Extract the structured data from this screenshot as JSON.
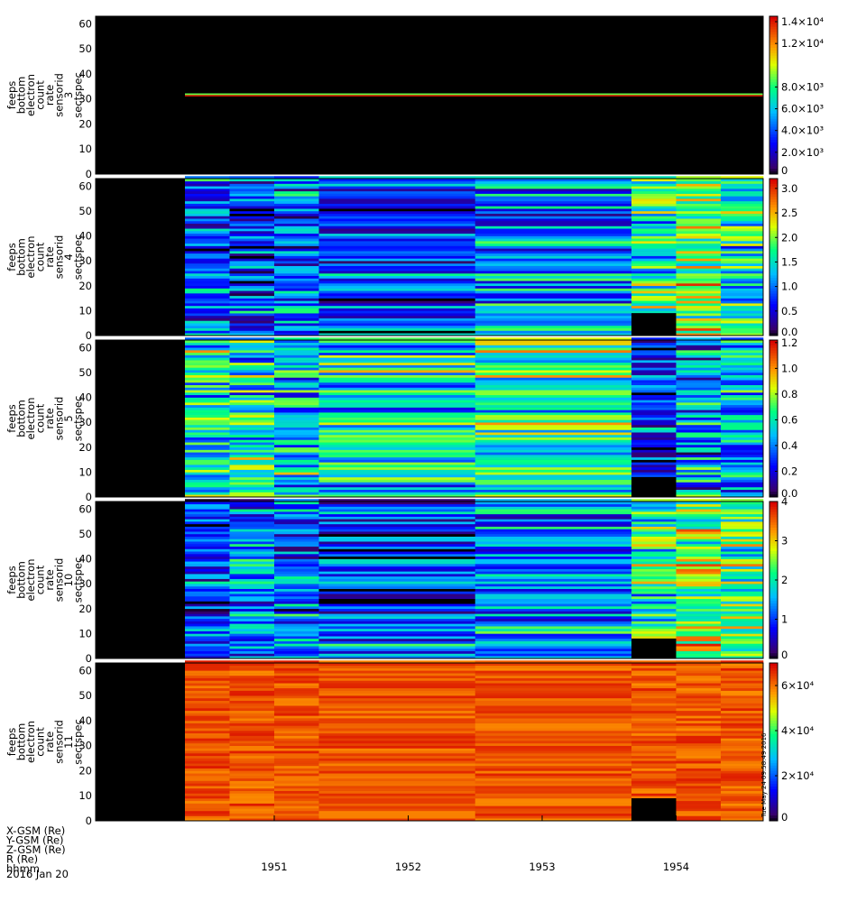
{
  "figure": {
    "date_label": "2016 Jan 20",
    "row_labels": [
      "X-GSM (Re)",
      "Y-GSM (Re)",
      "Z-GSM (Re)",
      "R (Re)",
      "hhmm"
    ],
    "side_stamp": "Tue May 24 09:58:49 2016",
    "time_ticks": [
      "1951",
      "1952",
      "1953",
      "1954"
    ]
  },
  "chart_data": [
    {
      "type": "heatmap",
      "ylabel": [
        "feeps",
        "bottom",
        "electron",
        "count",
        "rate",
        "sensorid",
        "3",
        "sectspec"
      ],
      "y_ticks": [
        "0",
        "10",
        "20",
        "30",
        "40",
        "50",
        "60"
      ],
      "ylim": [
        0,
        63
      ],
      "colorbar": {
        "ticks": [
          "0",
          "2.0×10³",
          "4.0×10³",
          "6.0×10³",
          "8.0×10³",
          "1.2×10⁴",
          "1.4×10⁴"
        ],
        "tick_values": [
          0,
          2000,
          4000,
          6000,
          8000,
          12000,
          14000
        ],
        "range": [
          0,
          14500
        ]
      },
      "data_start_time": "19:50:20",
      "features": [
        {
          "bin_low": 31,
          "bin_high": 31.6,
          "value": 14000,
          "level": "red"
        },
        {
          "bin_low": 31.6,
          "bin_high": 32.2,
          "value": 9000,
          "level": "green"
        }
      ]
    },
    {
      "type": "heatmap",
      "ylabel": [
        "feeps",
        "bottom",
        "electron",
        "count",
        "rate",
        "sensorid",
        "4",
        "sectspec"
      ],
      "y_ticks": [
        "0",
        "10",
        "20",
        "30",
        "40",
        "50",
        "60"
      ],
      "ylim": [
        0,
        63
      ],
      "colorbar": {
        "ticks": [
          "0.0",
          "0.5",
          "1.0",
          "1.5",
          "2.0",
          "2.5",
          "3.0"
        ],
        "tick_values": [
          0,
          0.5,
          1.0,
          1.5,
          2.0,
          2.5,
          3.0
        ],
        "range": [
          0,
          3.2
        ]
      },
      "data_start_time": "19:50:20",
      "time_blocks": [
        "19:50:20",
        "19:50:40",
        "19:51:00",
        "19:51:20",
        "19:52:30",
        "19:53:40",
        "19:54:00",
        "19:54:20"
      ],
      "block_means": [
        0.9,
        0.8,
        0.95,
        0.7,
        1.1,
        1.75,
        2.0,
        1.5
      ],
      "missing": [
        {
          "time_from": "19:53:40",
          "time_to": "19:54:00",
          "bin_low": 0,
          "bin_high": 9
        }
      ]
    },
    {
      "type": "heatmap",
      "ylabel": [
        "feeps",
        "bottom",
        "electron",
        "count",
        "rate",
        "sensorid",
        "5",
        "sectspec"
      ],
      "y_ticks": [
        "0",
        "10",
        "20",
        "30",
        "40",
        "50",
        "60"
      ],
      "ylim": [
        0,
        63
      ],
      "colorbar": {
        "ticks": [
          "0.0",
          "0.2",
          "0.4",
          "0.6",
          "0.8",
          "1.0",
          "1.2"
        ],
        "tick_values": [
          0,
          0.2,
          0.4,
          0.6,
          0.8,
          1.0,
          1.2
        ],
        "range": [
          0,
          1.22
        ]
      },
      "data_start_time": "19:50:20",
      "time_blocks": [
        "19:50:20",
        "19:50:40",
        "19:51:00",
        "19:51:20",
        "19:52:30",
        "19:53:40",
        "19:54:00",
        "19:54:20"
      ],
      "block_means": [
        0.6,
        0.6,
        0.55,
        0.58,
        0.7,
        0.3,
        0.45,
        0.5
      ],
      "missing": [
        {
          "time_from": "19:53:40",
          "time_to": "19:54:00",
          "bin_low": 0,
          "bin_high": 8
        }
      ]
    },
    {
      "type": "heatmap",
      "ylabel": [
        "feeps",
        "bottom",
        "electron",
        "count",
        "rate",
        "sensorid",
        "10",
        "sectspec"
      ],
      "y_ticks": [
        "0",
        "10",
        "20",
        "30",
        "40",
        "50",
        "60"
      ],
      "ylim": [
        0,
        63
      ],
      "colorbar": {
        "ticks": [
          "0",
          "1",
          "2",
          "3",
          "4"
        ],
        "tick_values": [
          0,
          1,
          2,
          3,
          4
        ],
        "range": [
          0,
          4
        ]
      },
      "data_start_time": "19:50:20",
      "time_blocks": [
        "19:50:20",
        "19:50:40",
        "19:51:00",
        "19:51:20",
        "19:52:30",
        "19:53:40",
        "19:54:00",
        "19:54:20"
      ],
      "block_means": [
        1.1,
        1.25,
        1.45,
        1.05,
        1.5,
        2.2,
        2.6,
        2.4
      ],
      "missing": [
        {
          "time_from": "19:53:40",
          "time_to": "19:54:00",
          "bin_low": 0,
          "bin_high": 8
        }
      ]
    },
    {
      "type": "heatmap",
      "ylabel": [
        "feeps",
        "bottom",
        "electron",
        "count",
        "rate",
        "sensorid",
        "11",
        "sectspec"
      ],
      "y_ticks": [
        "0",
        "10",
        "20",
        "30",
        "40",
        "50",
        "60"
      ],
      "ylim": [
        0,
        63
      ],
      "colorbar": {
        "ticks": [
          "0",
          "2×10⁴",
          "4×10⁴",
          "6×10⁴"
        ],
        "tick_values": [
          0,
          20000,
          40000,
          60000
        ],
        "range": [
          0,
          70000
        ]
      },
      "data_start_time": "19:50:20",
      "time_blocks": [
        "19:50:20",
        "19:50:40",
        "19:51:00",
        "19:51:20",
        "19:52:30",
        "19:53:40",
        "19:54:00",
        "19:54:20"
      ],
      "block_means": [
        64000,
        66000,
        65000,
        67000,
        63000,
        64000,
        68000,
        66000
      ],
      "missing": [
        {
          "time_from": "19:53:40",
          "time_to": "19:54:00",
          "bin_low": 0,
          "bin_high": 9
        }
      ]
    }
  ]
}
